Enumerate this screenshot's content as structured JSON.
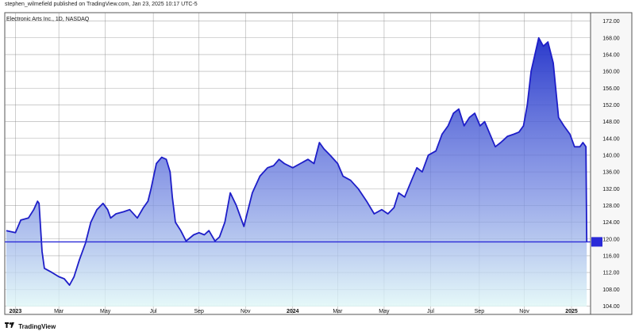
{
  "header": {
    "published_line": "stephen_wilmefield published on TradingView.com, Jan 23, 2025 10:17 UTC-5"
  },
  "footer": {
    "logo_icon": "tradingview-logo-icon",
    "brand": "TradingView"
  },
  "chart_data": {
    "type": "area",
    "title": "Electronic Arts Inc., 1D, NASDAQ",
    "xlabel": "",
    "ylabel": "",
    "ylim": [
      102,
      174
    ],
    "grid": true,
    "legend": "none",
    "colors": {
      "line": "#1e1ec8",
      "fill_top": "#1f2fc9",
      "fill_bottom": "#dff7f7",
      "grid": "#8a8a8a",
      "price_line": "#2a2ad8"
    },
    "reference_line": {
      "value": 119.31,
      "label": ""
    },
    "y_ticks": [
      104,
      108,
      112,
      116,
      120,
      124,
      128,
      132,
      136,
      140,
      144,
      148,
      152,
      156,
      160,
      164,
      168,
      172
    ],
    "x_ticks": [
      {
        "label": "2023",
        "x": "2023-01-03"
      },
      {
        "label": "Mar",
        "x": "2023-03-01"
      },
      {
        "label": "May",
        "x": "2023-05-01"
      },
      {
        "label": "Jul",
        "x": "2023-07-03"
      },
      {
        "label": "Sep",
        "x": "2023-09-01"
      },
      {
        "label": "Nov",
        "x": "2023-11-01"
      },
      {
        "label": "2024",
        "x": "2024-01-02"
      },
      {
        "label": "Mar",
        "x": "2024-03-01"
      },
      {
        "label": "May",
        "x": "2024-05-01"
      },
      {
        "label": "Jul",
        "x": "2024-07-01"
      },
      {
        "label": "Sep",
        "x": "2024-09-03"
      },
      {
        "label": "Nov",
        "x": "2024-11-01"
      },
      {
        "label": "2025",
        "x": "2025-01-02"
      }
    ],
    "series": [
      {
        "points": [
          [
            "2022-12-22",
            122
          ],
          [
            "2023-01-03",
            121.5
          ],
          [
            "2023-01-10",
            124.5
          ],
          [
            "2023-01-20",
            125
          ],
          [
            "2023-01-27",
            127
          ],
          [
            "2023-02-01",
            129
          ],
          [
            "2023-02-03",
            128.5
          ],
          [
            "2023-02-07",
            117
          ],
          [
            "2023-02-10",
            113
          ],
          [
            "2023-02-20",
            112
          ],
          [
            "2023-03-01",
            111
          ],
          [
            "2023-03-08",
            110.5
          ],
          [
            "2023-03-15",
            109
          ],
          [
            "2023-03-21",
            111
          ],
          [
            "2023-03-28",
            115
          ],
          [
            "2023-04-05",
            119
          ],
          [
            "2023-04-12",
            124
          ],
          [
            "2023-04-20",
            127
          ],
          [
            "2023-04-28",
            128.5
          ],
          [
            "2023-05-04",
            127
          ],
          [
            "2023-05-08",
            125
          ],
          [
            "2023-05-15",
            126
          ],
          [
            "2023-05-25",
            126.5
          ],
          [
            "2023-06-02",
            127
          ],
          [
            "2023-06-12",
            125
          ],
          [
            "2023-06-20",
            127.5
          ],
          [
            "2023-06-26",
            129
          ],
          [
            "2023-06-30",
            132
          ],
          [
            "2023-07-07",
            138
          ],
          [
            "2023-07-14",
            139.5
          ],
          [
            "2023-07-20",
            139
          ],
          [
            "2023-07-25",
            136
          ],
          [
            "2023-07-28",
            130
          ],
          [
            "2023-08-01",
            124
          ],
          [
            "2023-08-08",
            122
          ],
          [
            "2023-08-15",
            119.5
          ],
          [
            "2023-08-25",
            121
          ],
          [
            "2023-09-01",
            121.5
          ],
          [
            "2023-09-08",
            121
          ],
          [
            "2023-09-14",
            122
          ],
          [
            "2023-09-22",
            119.5
          ],
          [
            "2023-09-28",
            120.5
          ],
          [
            "2023-10-05",
            124
          ],
          [
            "2023-10-12",
            131
          ],
          [
            "2023-10-20",
            128
          ],
          [
            "2023-10-30",
            123
          ],
          [
            "2023-11-03",
            126
          ],
          [
            "2023-11-10",
            131
          ],
          [
            "2023-11-20",
            135
          ],
          [
            "2023-11-30",
            137
          ],
          [
            "2023-12-08",
            137.5
          ],
          [
            "2023-12-15",
            139
          ],
          [
            "2023-12-22",
            138
          ],
          [
            "2024-01-02",
            137
          ],
          [
            "2024-01-12",
            138
          ],
          [
            "2024-01-22",
            139
          ],
          [
            "2024-01-30",
            138
          ],
          [
            "2024-02-06",
            143
          ],
          [
            "2024-02-12",
            141.5
          ],
          [
            "2024-02-20",
            140
          ],
          [
            "2024-03-01",
            138
          ],
          [
            "2024-03-08",
            135
          ],
          [
            "2024-03-18",
            134
          ],
          [
            "2024-03-28",
            132
          ],
          [
            "2024-04-08",
            129
          ],
          [
            "2024-04-18",
            126
          ],
          [
            "2024-04-28",
            127
          ],
          [
            "2024-05-06",
            126
          ],
          [
            "2024-05-14",
            127.5
          ],
          [
            "2024-05-20",
            131
          ],
          [
            "2024-05-28",
            130
          ],
          [
            "2024-06-06",
            134
          ],
          [
            "2024-06-13",
            137
          ],
          [
            "2024-06-20",
            136
          ],
          [
            "2024-06-28",
            140
          ],
          [
            "2024-07-08",
            141
          ],
          [
            "2024-07-16",
            145
          ],
          [
            "2024-07-24",
            147
          ],
          [
            "2024-07-31",
            150
          ],
          [
            "2024-08-07",
            151
          ],
          [
            "2024-08-14",
            147
          ],
          [
            "2024-08-21",
            149
          ],
          [
            "2024-08-28",
            150
          ],
          [
            "2024-09-04",
            147
          ],
          [
            "2024-09-10",
            148
          ],
          [
            "2024-09-17",
            145
          ],
          [
            "2024-09-24",
            142
          ],
          [
            "2024-10-01",
            143
          ],
          [
            "2024-10-10",
            144.5
          ],
          [
            "2024-10-18",
            145
          ],
          [
            "2024-10-25",
            145.5
          ],
          [
            "2024-10-31",
            147
          ],
          [
            "2024-11-05",
            152
          ],
          [
            "2024-11-10",
            160
          ],
          [
            "2024-11-15",
            164
          ],
          [
            "2024-11-20",
            168
          ],
          [
            "2024-11-26",
            166
          ],
          [
            "2024-12-02",
            167
          ],
          [
            "2024-12-09",
            162
          ],
          [
            "2024-12-16",
            149
          ],
          [
            "2024-12-23",
            147
          ],
          [
            "2024-12-31",
            145
          ],
          [
            "2025-01-06",
            142
          ],
          [
            "2025-01-13",
            142
          ],
          [
            "2025-01-17",
            143
          ],
          [
            "2025-01-21",
            142
          ],
          [
            "2025-01-22",
            119.31
          ]
        ]
      }
    ]
  }
}
